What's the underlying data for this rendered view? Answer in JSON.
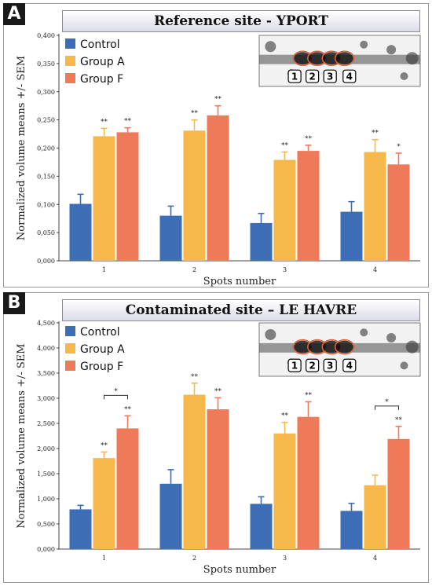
{
  "colors": {
    "control": "#3d6db5",
    "group_a": "#f7b84b",
    "group_f": "#ee7a59"
  },
  "chart_data": [
    {
      "type": "bar",
      "panel_letter": "A",
      "title": "Reference site - YPORT",
      "xlabel": "Spots number",
      "ylabel": "Normalized volume means +/- SEM",
      "categories": [
        "1",
        "2",
        "3",
        "4"
      ],
      "ylim": [
        0,
        0.4
      ],
      "yticks": [
        "0,000",
        "0,050",
        "0,100",
        "0,150",
        "0,200",
        "0,250",
        "0,300",
        "0,350",
        "0,400"
      ],
      "legend_position": "top-left",
      "series": [
        {
          "name": "Control",
          "values": [
            0.101,
            0.08,
            0.067,
            0.087
          ],
          "errors": [
            0.017,
            0.017,
            0.017,
            0.018
          ],
          "sig": [
            "",
            "",
            "",
            ""
          ]
        },
        {
          "name": "Group A",
          "values": [
            0.221,
            0.231,
            0.179,
            0.193
          ],
          "errors": [
            0.014,
            0.019,
            0.014,
            0.022
          ],
          "sig": [
            "**",
            "**",
            "**",
            "**"
          ]
        },
        {
          "name": "Group F",
          "values": [
            0.228,
            0.258,
            0.195,
            0.171
          ],
          "errors": [
            0.008,
            0.017,
            0.01,
            0.02
          ],
          "sig": [
            "**",
            "**",
            "**",
            "*"
          ]
        }
      ],
      "brackets": [],
      "inset_spot_labels": [
        "1",
        "2",
        "3",
        "4"
      ]
    },
    {
      "type": "bar",
      "panel_letter": "B",
      "title": "Contaminated site – LE HAVRE",
      "xlabel": "Spots number",
      "ylabel": "Normalized volume means +/- SEM",
      "categories": [
        "1",
        "2",
        "3",
        "4"
      ],
      "ylim": [
        0,
        4.5
      ],
      "yticks": [
        "0,000",
        "0,500",
        "1,000",
        "1,500",
        "2,000",
        "2,500",
        "3,000",
        "3,500",
        "4,000",
        "4,500"
      ],
      "legend_position": "top-left",
      "series": [
        {
          "name": "Control",
          "values": [
            0.79,
            1.3,
            0.9,
            0.76
          ],
          "errors": [
            0.08,
            0.28,
            0.14,
            0.15
          ],
          "sig": [
            "",
            "",
            "",
            ""
          ]
        },
        {
          "name": "Group A",
          "values": [
            1.81,
            3.07,
            2.3,
            1.27
          ],
          "errors": [
            0.12,
            0.23,
            0.22,
            0.2
          ],
          "sig": [
            "**",
            "**",
            "**",
            ""
          ]
        },
        {
          "name": "Group F",
          "values": [
            2.4,
            2.78,
            2.63,
            2.19
          ],
          "errors": [
            0.25,
            0.23,
            0.3,
            0.25
          ],
          "sig": [
            "**",
            "**",
            "**",
            "**"
          ]
        }
      ],
      "brackets": [
        {
          "category": 0,
          "label": "*"
        },
        {
          "category": 3,
          "label": "*"
        }
      ],
      "inset_spot_labels": [
        "1",
        "2",
        "3",
        "4"
      ]
    }
  ]
}
